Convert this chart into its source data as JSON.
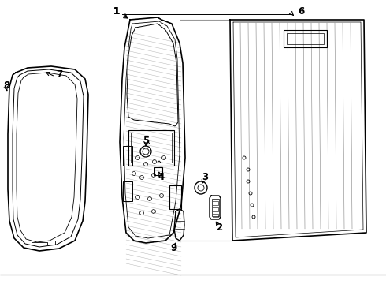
{
  "background_color": "#ffffff",
  "line_color": "#000000",
  "figsize": [
    4.9,
    3.6
  ],
  "dpi": 100
}
